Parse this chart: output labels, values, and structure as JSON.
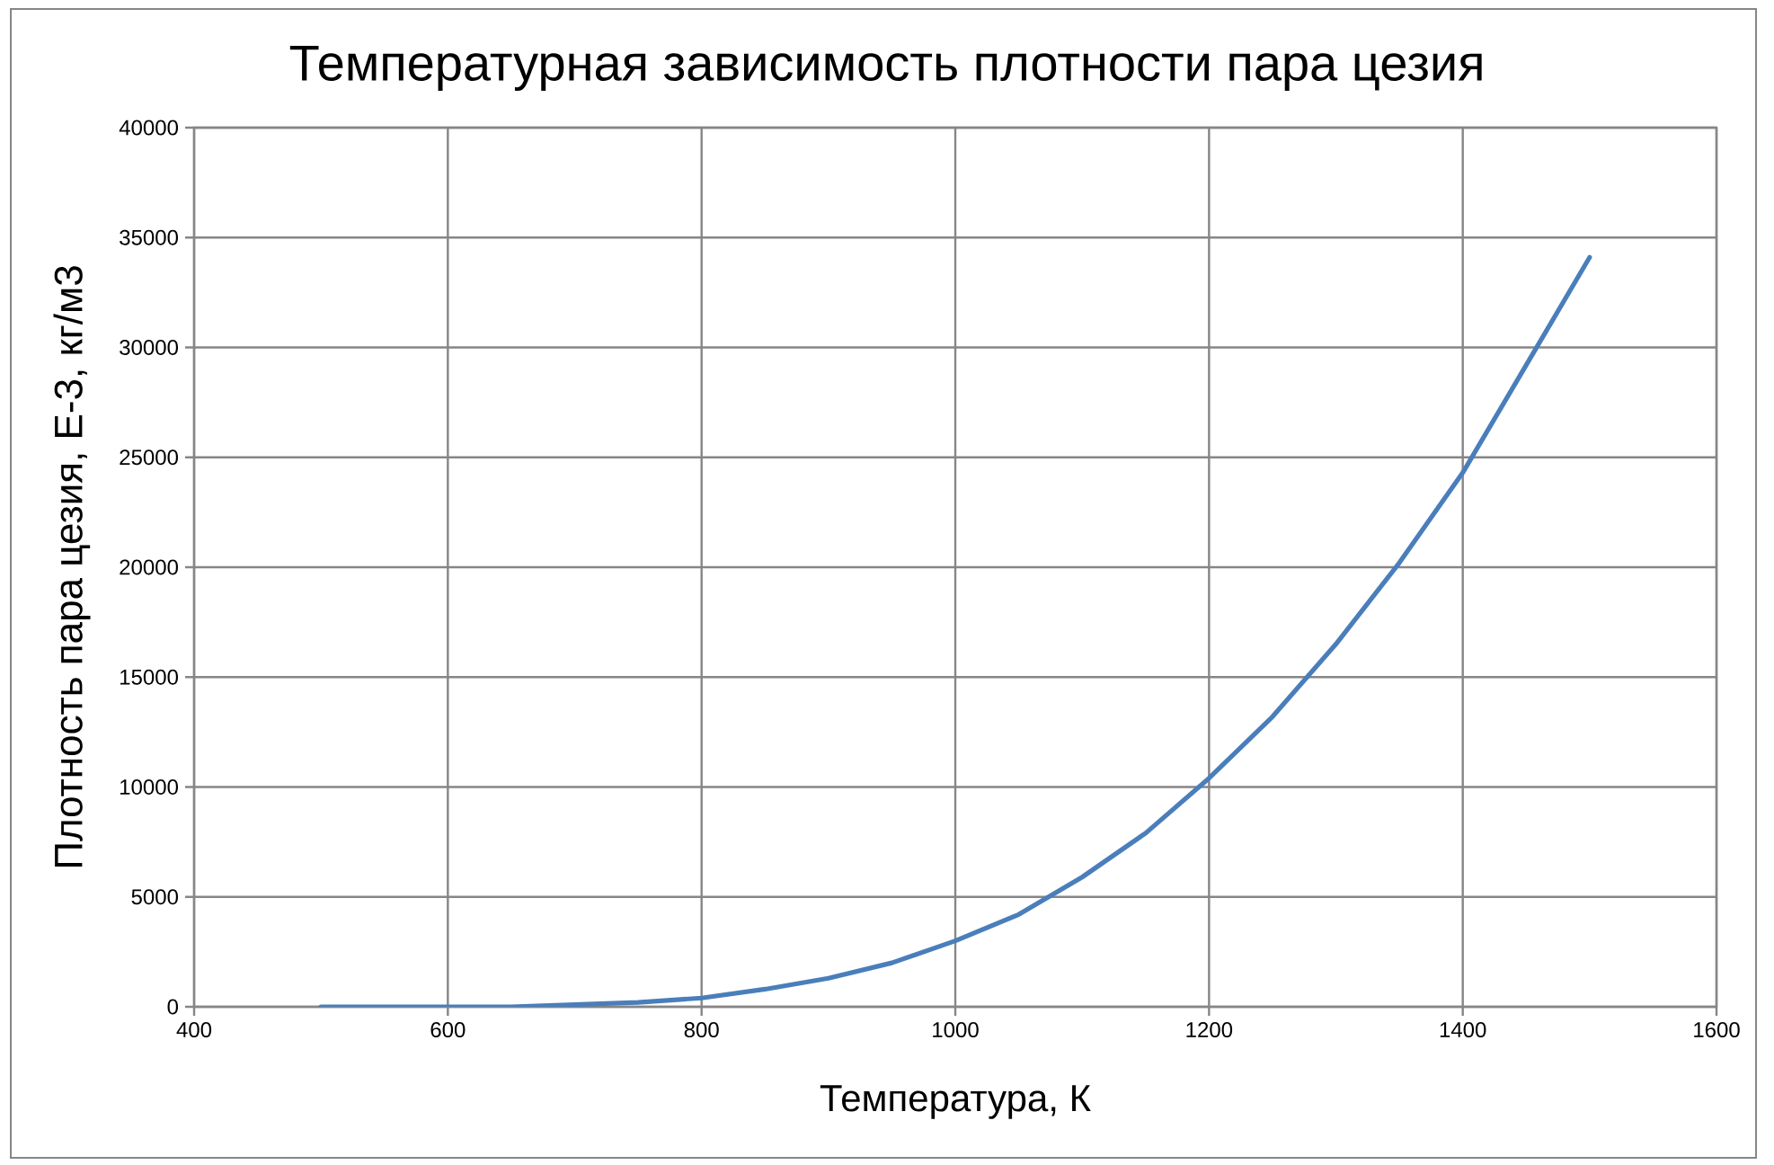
{
  "chart_data": {
    "type": "line",
    "title": "Температурная зависимость плотности пара цезия",
    "xlabel": "Температура, К",
    "ylabel": "Плотность пара цезия, E-3, кг/м3",
    "x": [
      500,
      550,
      600,
      650,
      700,
      750,
      800,
      850,
      900,
      950,
      1000,
      1050,
      1100,
      1150,
      1200,
      1250,
      1300,
      1350,
      1400,
      1450,
      1500
    ],
    "series": [
      {
        "color": "#4a7ebb",
        "values": [
          0,
          0,
          0,
          0,
          100,
          200,
          400,
          800,
          1300,
          2000,
          3000,
          4200,
          5900,
          7900,
          10400,
          13200,
          16500,
          20200,
          24300,
          29200,
          34100
        ]
      }
    ],
    "xlim": [
      400,
      1600
    ],
    "ylim": [
      0,
      40000
    ],
    "xticks": [
      400,
      600,
      800,
      1000,
      1200,
      1400,
      1600
    ],
    "yticks": [
      0,
      5000,
      10000,
      15000,
      20000,
      25000,
      30000,
      35000,
      40000
    ],
    "grid": true,
    "marker": "none",
    "line_style": "solid"
  }
}
